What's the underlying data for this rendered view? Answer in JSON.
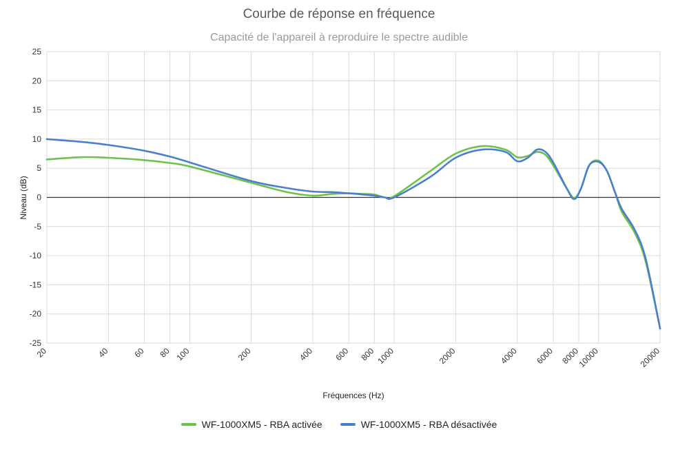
{
  "chart_data": {
    "type": "line",
    "title": "Courbe de réponse en fréquence",
    "subtitle": "Capacité de l'appareil à reproduire le spectre audible",
    "xlabel": "Fréquences (Hz)",
    "ylabel": "Niveau (dB)",
    "x_scale": "log",
    "xlim": [
      20,
      20000
    ],
    "ylim": [
      -25,
      25
    ],
    "x_ticks": [
      20,
      40,
      60,
      80,
      100,
      200,
      400,
      600,
      800,
      1000,
      2000,
      4000,
      6000,
      8000,
      10000,
      20000
    ],
    "y_ticks": [
      25,
      20,
      15,
      10,
      5,
      0,
      -5,
      -10,
      -15,
      -20,
      -25
    ],
    "grid": true,
    "legend": "bottom",
    "series": [
      {
        "name": "WF-1000XM5 - RBA activée",
        "color": "#6cc24a",
        "points": [
          [
            20,
            6.5
          ],
          [
            30,
            6.9
          ],
          [
            40,
            6.8
          ],
          [
            60,
            6.4
          ],
          [
            80,
            5.9
          ],
          [
            100,
            5.3
          ],
          [
            200,
            2.5
          ],
          [
            300,
            0.9
          ],
          [
            400,
            0.3
          ],
          [
            500,
            0.6
          ],
          [
            600,
            0.7
          ],
          [
            700,
            0.6
          ],
          [
            800,
            0.5
          ],
          [
            900,
            0.0
          ],
          [
            1000,
            0.2
          ],
          [
            1500,
            4.5
          ],
          [
            2000,
            7.5
          ],
          [
            2700,
            8.8
          ],
          [
            3500,
            8.2
          ],
          [
            4000,
            6.9
          ],
          [
            4500,
            7.1
          ],
          [
            5000,
            7.8
          ],
          [
            5500,
            7.3
          ],
          [
            6000,
            5.5
          ],
          [
            7000,
            1.5
          ],
          [
            7600,
            -0.1
          ],
          [
            8200,
            1.5
          ],
          [
            9000,
            5.5
          ],
          [
            10000,
            6.3
          ],
          [
            11000,
            4.5
          ],
          [
            12000,
            1.0
          ],
          [
            13000,
            -2.5
          ],
          [
            15000,
            -6.0
          ],
          [
            17000,
            -11.0
          ],
          [
            20000,
            -22.5
          ]
        ]
      },
      {
        "name": "WF-1000XM5 - RBA désactivée",
        "color": "#4a7fd0",
        "points": [
          [
            20,
            10.0
          ],
          [
            30,
            9.5
          ],
          [
            40,
            9.0
          ],
          [
            60,
            8.0
          ],
          [
            80,
            7.0
          ],
          [
            100,
            6.0
          ],
          [
            200,
            2.8
          ],
          [
            300,
            1.6
          ],
          [
            400,
            1.0
          ],
          [
            500,
            0.9
          ],
          [
            600,
            0.7
          ],
          [
            700,
            0.5
          ],
          [
            800,
            0.3
          ],
          [
            900,
            0.0
          ],
          [
            1000,
            0.0
          ],
          [
            1500,
            3.5
          ],
          [
            2000,
            6.8
          ],
          [
            2700,
            8.2
          ],
          [
            3500,
            7.8
          ],
          [
            4000,
            6.2
          ],
          [
            4500,
            6.8
          ],
          [
            5000,
            8.2
          ],
          [
            5500,
            7.8
          ],
          [
            6000,
            6.0
          ],
          [
            7000,
            1.5
          ],
          [
            7600,
            -0.3
          ],
          [
            8200,
            1.5
          ],
          [
            9000,
            5.5
          ],
          [
            10000,
            6.1
          ],
          [
            11000,
            4.5
          ],
          [
            12000,
            1.0
          ],
          [
            13000,
            -2.0
          ],
          [
            15000,
            -5.5
          ],
          [
            17000,
            -10.5
          ],
          [
            20000,
            -22.5
          ]
        ]
      }
    ]
  }
}
